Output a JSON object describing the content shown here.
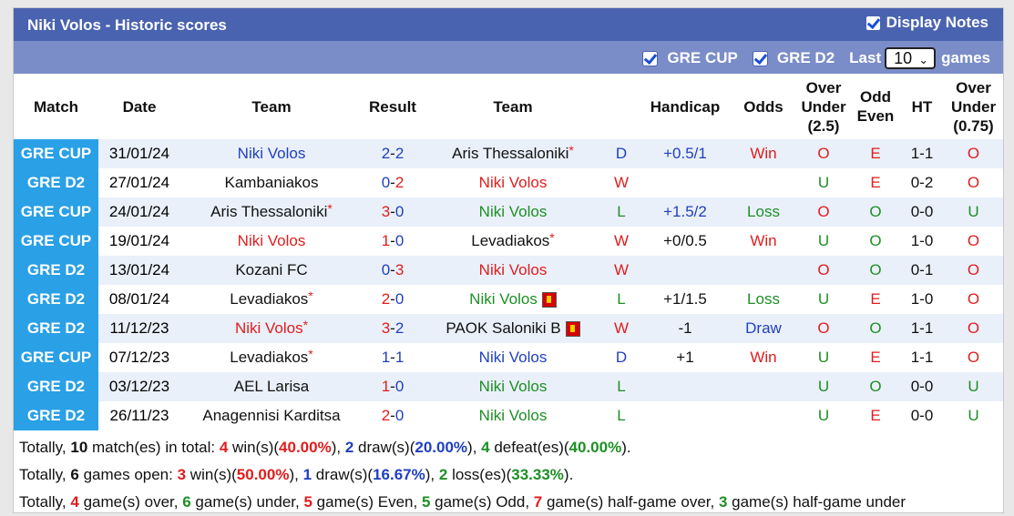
{
  "title": "Niki Volos - Historic scores",
  "display_notes": "Display Notes",
  "filters": {
    "comp1": "GRE CUP",
    "comp2": "GRE D2",
    "last_label": "Last",
    "last_value": "10",
    "games_label": "games"
  },
  "headers": {
    "match": "Match",
    "date": "Date",
    "team1": "Team",
    "result": "Result",
    "team2": "Team",
    "handicap": "Handicap",
    "odds": "Odds",
    "ou": [
      "Over",
      "Under",
      "(2.5)"
    ],
    "oe": [
      "Odd",
      "Even"
    ],
    "ht": "HT",
    "ou2": [
      "Over",
      "Under",
      "(0.75)"
    ]
  },
  "rows": [
    {
      "comp": "GRE CUP",
      "date": "31/01/24",
      "home": "Niki Volos",
      "home_star": false,
      "home_color": "blue",
      "home_rc": false,
      "sh": "2",
      "sa": "2",
      "sh_color": "blue",
      "sa_color": "blue",
      "away": "Aris Thessaloniki",
      "away_star": true,
      "away_color": "dark",
      "away_rc": false,
      "res": "D",
      "res_color": "blue",
      "hcp": "+0.5/1",
      "hcp_color": "blue",
      "odds": "Win",
      "odds_color": "red",
      "ou": "O",
      "ou_color": "red",
      "oe": "E",
      "oe_color": "red",
      "ht": "1-1",
      "ou2": "O",
      "ou2_color": "red"
    },
    {
      "comp": "GRE D2",
      "date": "27/01/24",
      "home": "Kambaniakos",
      "home_star": false,
      "home_color": "dark",
      "home_rc": false,
      "sh": "0",
      "sa": "2",
      "sh_color": "blue",
      "sa_color": "red",
      "away": "Niki Volos",
      "away_star": false,
      "away_color": "red",
      "away_rc": false,
      "res": "W",
      "res_color": "red",
      "hcp": "",
      "hcp_color": "blue",
      "odds": "",
      "odds_color": "red",
      "ou": "U",
      "ou_color": "green",
      "oe": "E",
      "oe_color": "red",
      "ht": "0-2",
      "ou2": "O",
      "ou2_color": "red"
    },
    {
      "comp": "GRE CUP",
      "date": "24/01/24",
      "home": "Aris Thessaloniki",
      "home_star": true,
      "home_color": "dark",
      "home_rc": false,
      "sh": "3",
      "sa": "0",
      "sh_color": "red",
      "sa_color": "blue",
      "away": "Niki Volos",
      "away_star": false,
      "away_color": "green",
      "away_rc": false,
      "res": "L",
      "res_color": "green",
      "hcp": "+1.5/2",
      "hcp_color": "blue",
      "odds": "Loss",
      "odds_color": "green",
      "ou": "O",
      "ou_color": "red",
      "oe": "O",
      "oe_color": "green",
      "ht": "0-0",
      "ou2": "U",
      "ou2_color": "green"
    },
    {
      "comp": "GRE CUP",
      "date": "19/01/24",
      "home": "Niki Volos",
      "home_star": false,
      "home_color": "red",
      "home_rc": false,
      "sh": "1",
      "sa": "0",
      "sh_color": "red",
      "sa_color": "blue",
      "away": "Levadiakos",
      "away_star": true,
      "away_color": "dark",
      "away_rc": false,
      "res": "W",
      "res_color": "red",
      "hcp": "+0/0.5",
      "hcp_color": "dark",
      "odds": "Win",
      "odds_color": "red",
      "ou": "U",
      "ou_color": "green",
      "oe": "O",
      "oe_color": "green",
      "ht": "1-0",
      "ou2": "O",
      "ou2_color": "red"
    },
    {
      "comp": "GRE D2",
      "date": "13/01/24",
      "home": "Kozani FC",
      "home_star": false,
      "home_color": "dark",
      "home_rc": false,
      "sh": "0",
      "sa": "3",
      "sh_color": "blue",
      "sa_color": "red",
      "away": "Niki Volos",
      "away_star": false,
      "away_color": "red",
      "away_rc": false,
      "res": "W",
      "res_color": "red",
      "hcp": "",
      "hcp_color": "blue",
      "odds": "",
      "odds_color": "red",
      "ou": "O",
      "ou_color": "red",
      "oe": "O",
      "oe_color": "green",
      "ht": "0-1",
      "ou2": "O",
      "ou2_color": "red"
    },
    {
      "comp": "GRE D2",
      "date": "08/01/24",
      "home": "Levadiakos",
      "home_star": true,
      "home_color": "dark",
      "home_rc": false,
      "sh": "2",
      "sa": "0",
      "sh_color": "red",
      "sa_color": "blue",
      "away": "Niki Volos",
      "away_star": false,
      "away_color": "green",
      "away_rc": true,
      "res": "L",
      "res_color": "green",
      "hcp": "+1/1.5",
      "hcp_color": "dark",
      "odds": "Loss",
      "odds_color": "green",
      "ou": "U",
      "ou_color": "green",
      "oe": "E",
      "oe_color": "red",
      "ht": "1-0",
      "ou2": "O",
      "ou2_color": "red"
    },
    {
      "comp": "GRE D2",
      "date": "11/12/23",
      "home": "Niki Volos",
      "home_star": true,
      "home_color": "red",
      "home_rc": false,
      "sh": "3",
      "sa": "2",
      "sh_color": "red",
      "sa_color": "blue",
      "away": "PAOK Saloniki B",
      "away_star": false,
      "away_color": "dark",
      "away_rc": true,
      "res": "W",
      "res_color": "red",
      "hcp": "-1",
      "hcp_color": "dark",
      "odds": "Draw",
      "odds_color": "blue",
      "ou": "O",
      "ou_color": "red",
      "oe": "O",
      "oe_color": "green",
      "ht": "1-1",
      "ou2": "O",
      "ou2_color": "red"
    },
    {
      "comp": "GRE CUP",
      "date": "07/12/23",
      "home": "Levadiakos",
      "home_star": true,
      "home_color": "dark",
      "home_rc": false,
      "sh": "1",
      "sa": "1",
      "sh_color": "blue",
      "sa_color": "blue",
      "away": "Niki Volos",
      "away_star": false,
      "away_color": "blue",
      "away_rc": false,
      "res": "D",
      "res_color": "blue",
      "hcp": "+1",
      "hcp_color": "dark",
      "odds": "Win",
      "odds_color": "red",
      "ou": "U",
      "ou_color": "green",
      "oe": "E",
      "oe_color": "red",
      "ht": "1-1",
      "ou2": "O",
      "ou2_color": "red"
    },
    {
      "comp": "GRE D2",
      "date": "03/12/23",
      "home": "AEL Larisa",
      "home_star": false,
      "home_color": "dark",
      "home_rc": false,
      "sh": "1",
      "sa": "0",
      "sh_color": "red",
      "sa_color": "blue",
      "away": "Niki Volos",
      "away_star": false,
      "away_color": "green",
      "away_rc": false,
      "res": "L",
      "res_color": "green",
      "hcp": "",
      "hcp_color": "blue",
      "odds": "",
      "odds_color": "red",
      "ou": "U",
      "ou_color": "green",
      "oe": "O",
      "oe_color": "green",
      "ht": "0-0",
      "ou2": "U",
      "ou2_color": "green"
    },
    {
      "comp": "GRE D2",
      "date": "26/11/23",
      "home": "Anagennisi Karditsa",
      "home_star": false,
      "home_color": "dark",
      "home_rc": false,
      "sh": "2",
      "sa": "0",
      "sh_color": "red",
      "sa_color": "blue",
      "away": "Niki Volos",
      "away_star": false,
      "away_color": "green",
      "away_rc": false,
      "res": "L",
      "res_color": "green",
      "hcp": "",
      "hcp_color": "blue",
      "odds": "",
      "odds_color": "red",
      "ou": "U",
      "ou_color": "green",
      "oe": "E",
      "oe_color": "red",
      "ht": "0-0",
      "ou2": "U",
      "ou2_color": "green"
    }
  ],
  "totals": {
    "line1": [
      {
        "t": "Totally, ",
        "c": "dark",
        "b": false
      },
      {
        "t": "10",
        "c": "dark",
        "b": true
      },
      {
        "t": " match(es) in total: ",
        "c": "dark",
        "b": false
      },
      {
        "t": "4",
        "c": "red",
        "b": true
      },
      {
        "t": " win(s)(",
        "c": "dark",
        "b": false
      },
      {
        "t": "40.00%",
        "c": "red",
        "b": true
      },
      {
        "t": "), ",
        "c": "dark",
        "b": false
      },
      {
        "t": "2",
        "c": "blue",
        "b": true
      },
      {
        "t": " draw(s)(",
        "c": "dark",
        "b": false
      },
      {
        "t": "20.00%",
        "c": "blue",
        "b": true
      },
      {
        "t": "), ",
        "c": "dark",
        "b": false
      },
      {
        "t": "4",
        "c": "green",
        "b": true
      },
      {
        "t": " defeat(es)(",
        "c": "dark",
        "b": false
      },
      {
        "t": "40.00%",
        "c": "green",
        "b": true
      },
      {
        "t": ").",
        "c": "dark",
        "b": false
      }
    ],
    "line2": [
      {
        "t": "Totally, ",
        "c": "dark",
        "b": false
      },
      {
        "t": "6",
        "c": "dark",
        "b": true
      },
      {
        "t": " games open: ",
        "c": "dark",
        "b": false
      },
      {
        "t": "3",
        "c": "red",
        "b": true
      },
      {
        "t": " win(s)(",
        "c": "dark",
        "b": false
      },
      {
        "t": "50.00%",
        "c": "red",
        "b": true
      },
      {
        "t": "), ",
        "c": "dark",
        "b": false
      },
      {
        "t": "1",
        "c": "blue",
        "b": true
      },
      {
        "t": " draw(s)(",
        "c": "dark",
        "b": false
      },
      {
        "t": "16.67%",
        "c": "blue",
        "b": true
      },
      {
        "t": "), ",
        "c": "dark",
        "b": false
      },
      {
        "t": "2",
        "c": "green",
        "b": true
      },
      {
        "t": " loss(es)(",
        "c": "dark",
        "b": false
      },
      {
        "t": "33.33%",
        "c": "green",
        "b": true
      },
      {
        "t": ").",
        "c": "dark",
        "b": false
      }
    ],
    "line3": [
      {
        "t": "Totally, ",
        "c": "dark",
        "b": false
      },
      {
        "t": "4",
        "c": "red",
        "b": true
      },
      {
        "t": " game(s) over, ",
        "c": "dark",
        "b": false
      },
      {
        "t": "6",
        "c": "green",
        "b": true
      },
      {
        "t": " game(s) under, ",
        "c": "dark",
        "b": false
      },
      {
        "t": "5",
        "c": "red",
        "b": true
      },
      {
        "t": " game(s) Even, ",
        "c": "dark",
        "b": false
      },
      {
        "t": "5",
        "c": "green",
        "b": true
      },
      {
        "t": " game(s) Odd, ",
        "c": "dark",
        "b": false
      },
      {
        "t": "7",
        "c": "red",
        "b": true
      },
      {
        "t": " game(s) half-game over, ",
        "c": "dark",
        "b": false
      },
      {
        "t": "3",
        "c": "green",
        "b": true
      },
      {
        "t": " game(s) half-game under",
        "c": "dark",
        "b": false
      }
    ]
  },
  "colors": {
    "header_blue": "#4a63b0",
    "filter_blue": "#7b8dc8",
    "comp_blue": "#2aa0e6",
    "row_alt": "#eaf0fa",
    "red": "#e01d1d",
    "blue": "#1f3fbf",
    "green": "#1d8f24"
  }
}
